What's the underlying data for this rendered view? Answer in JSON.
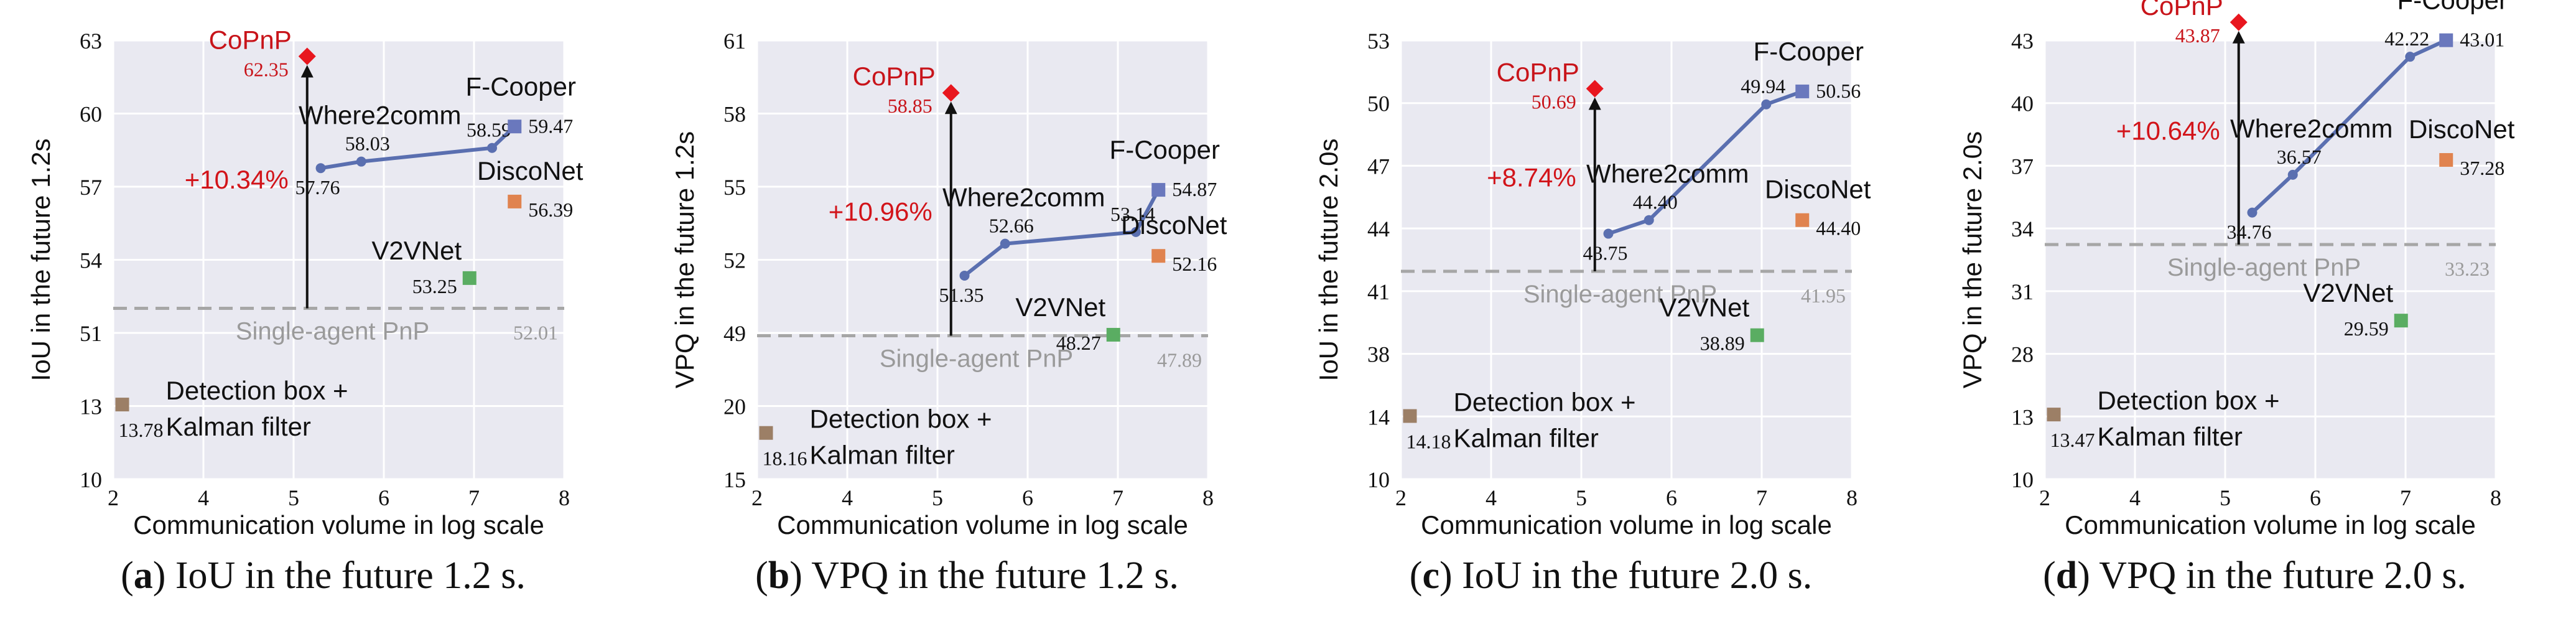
{
  "chart_data": [
    {
      "type": "scatter",
      "id": "a",
      "caption_letter": "a",
      "caption_text": "IoU in the future 1.2 s.",
      "xlabel": "Communication volume in log scale",
      "ylabel": "IoU in the future 1.2s",
      "xlim": [
        2,
        8
      ],
      "xticks": [
        "2",
        "4",
        "5",
        "6",
        "7",
        "8"
      ],
      "xtick_values": [
        2,
        4,
        5,
        6,
        7,
        8
      ],
      "yticks": [
        "10",
        "13",
        "51",
        "54",
        "57",
        "60",
        "63"
      ],
      "copnp": {
        "name": "CoPnP",
        "x": 5.15,
        "y": 62.35,
        "label": "62.35"
      },
      "where2comm": {
        "name": "Where2comm",
        "points": [
          [
            5.3,
            57.76
          ],
          [
            5.75,
            58.03
          ],
          [
            7.2,
            58.59
          ],
          [
            7.45,
            59.47
          ]
        ],
        "labels": [
          "57.76",
          "58.03",
          "58.59",
          "59.47"
        ]
      },
      "fcooper": {
        "name": "F-Cooper",
        "x": 7.45,
        "y": 59.47
      },
      "disconet": {
        "name": "DiscoNet",
        "x": 7.45,
        "y": 56.39,
        "label": "56.39"
      },
      "v2vnet": {
        "name": "V2VNet",
        "x": 6.95,
        "y": 53.25,
        "label": "53.25"
      },
      "single_agent": {
        "name": "Single-agent PnP",
        "y": 52.01,
        "label": "52.01"
      },
      "detection": {
        "name_line1": "Detection box +",
        "name_line2": "Kalman filter",
        "x": 2.2,
        "y": 13.78,
        "label": "13.78"
      },
      "improvement": "+10.34%"
    },
    {
      "type": "scatter",
      "id": "b",
      "caption_letter": "b",
      "caption_text": "VPQ in the future 1.2 s.",
      "xlabel": "Communication volume in log scale",
      "ylabel": "VPQ in the future 1.2s",
      "xlim": [
        2,
        8
      ],
      "xticks": [
        "2",
        "4",
        "5",
        "6",
        "7",
        "8"
      ],
      "xtick_values": [
        2,
        4,
        5,
        6,
        7,
        8
      ],
      "yticks": [
        "15",
        "20",
        "49",
        "52",
        "55",
        "58",
        "61"
      ],
      "copnp": {
        "name": "CoPnP",
        "x": 5.15,
        "y": 58.85,
        "label": "58.85"
      },
      "where2comm": {
        "name": "Where2comm",
        "points": [
          [
            5.3,
            51.35
          ],
          [
            5.75,
            52.66
          ],
          [
            7.2,
            53.14
          ],
          [
            7.45,
            54.87
          ]
        ],
        "labels": [
          "51.35",
          "52.66",
          "53.14",
          "54.87"
        ]
      },
      "fcooper": {
        "name": "F-Cooper",
        "x": 7.45,
        "y": 54.87
      },
      "disconet": {
        "name": "DiscoNet",
        "x": 7.45,
        "y": 52.16,
        "label": "52.16"
      },
      "v2vnet": {
        "name": "V2VNet",
        "x": 6.95,
        "y": 48.27,
        "label": "48.27"
      },
      "single_agent": {
        "name": "Single-agent PnP",
        "y": 47.89,
        "label": "47.89"
      },
      "detection": {
        "name_line1": "Detection box +",
        "name_line2": "Kalman filter",
        "x": 2.2,
        "y": 18.16,
        "label": "18.16"
      },
      "improvement": "+10.96%"
    },
    {
      "type": "scatter",
      "id": "c",
      "caption_letter": "c",
      "caption_text": "IoU in the future 2.0 s.",
      "xlabel": "Communication volume in log scale",
      "ylabel": "IoU in the future 2.0s",
      "xlim": [
        2,
        8
      ],
      "xticks": [
        "2",
        "4",
        "5",
        "6",
        "7",
        "8"
      ],
      "xtick_values": [
        2,
        4,
        5,
        6,
        7,
        8
      ],
      "yticks": [
        "10",
        "14",
        "38",
        "41",
        "44",
        "47",
        "50",
        "53"
      ],
      "copnp": {
        "name": "CoPnP",
        "x": 5.15,
        "y": 50.69,
        "label": "50.69"
      },
      "where2comm": {
        "name": "Where2comm",
        "points": [
          [
            5.3,
            43.75
          ],
          [
            5.75,
            44.4
          ],
          [
            7.05,
            49.94
          ],
          [
            7.45,
            50.56
          ]
        ],
        "labels": [
          "43.75",
          "44.40",
          "49.94",
          "50.56"
        ]
      },
      "fcooper": {
        "name": "F-Cooper",
        "x": 7.45,
        "y": 50.56
      },
      "disconet": {
        "name": "DiscoNet",
        "x": 7.45,
        "y": 44.4,
        "label": "44.40"
      },
      "v2vnet": {
        "name": "V2VNet",
        "x": 6.95,
        "y": 38.89,
        "label": "38.89"
      },
      "single_agent": {
        "name": "Single-agent PnP",
        "y": 41.95,
        "label": "41.95"
      },
      "detection": {
        "name_line1": "Detection box +",
        "name_line2": "Kalman filter",
        "x": 2.2,
        "y": 14.18,
        "label": "14.18"
      },
      "improvement": "+8.74%"
    },
    {
      "type": "scatter",
      "id": "d",
      "caption_letter": "d",
      "caption_text": "VPQ in the future 2.0 s.",
      "xlabel": "Communication volume in log scale",
      "ylabel": "VPQ in the future 2.0s",
      "xlim": [
        2,
        8
      ],
      "xticks": [
        "2",
        "4",
        "5",
        "6",
        "7",
        "8"
      ],
      "xtick_values": [
        2,
        4,
        5,
        6,
        7,
        8
      ],
      "yticks": [
        "10",
        "13",
        "28",
        "31",
        "34",
        "37",
        "40",
        "43"
      ],
      "copnp": {
        "name": "CoPnP",
        "x": 5.15,
        "y": 43.87,
        "label": "43.87"
      },
      "where2comm": {
        "name": "Where2comm",
        "points": [
          [
            5.3,
            34.76
          ],
          [
            5.75,
            36.57
          ],
          [
            7.05,
            42.22
          ],
          [
            7.45,
            43.01
          ]
        ],
        "labels": [
          "34.76",
          "36.57",
          "42.22",
          "43.01"
        ]
      },
      "fcooper": {
        "name": "F-Cooper",
        "x": 7.45,
        "y": 43.01
      },
      "disconet": {
        "name": "DiscoNet",
        "x": 7.45,
        "y": 37.28,
        "label": "37.28"
      },
      "v2vnet": {
        "name": "V2VNet",
        "x": 6.95,
        "y": 29.59,
        "label": "29.59"
      },
      "single_agent": {
        "name": "Single-agent PnP",
        "y": 33.23,
        "label": "33.23"
      },
      "detection": {
        "name_line1": "Detection box +",
        "name_line2": "Kalman filter",
        "x": 2.2,
        "y": 13.47,
        "label": "13.47"
      },
      "improvement": "+10.64%"
    }
  ],
  "colors": {
    "plot_bg": "#e9e9f1",
    "grid": "#ffffff",
    "copnp": "#e8161e",
    "copnp_text": "#c8141a",
    "where2comm": "#5a6fb0",
    "fcooper": "#6a78bd",
    "disconet": "#e0834f",
    "v2vnet": "#5aad62",
    "detection": "#9c7f66",
    "single_agent": "#a6a6a6",
    "improvement": "#d2141a"
  }
}
